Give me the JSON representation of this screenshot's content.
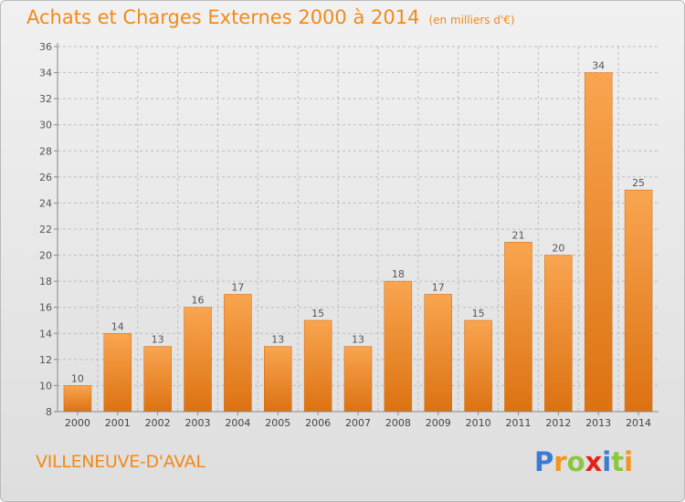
{
  "title": "Achats et Charges Externes 2000 à 2014",
  "unit": "(en milliers d'€)",
  "commune": "VILLENEUVE-D'AVAL",
  "logo": {
    "text": "Proxiti",
    "letters": [
      "P",
      "r",
      "o",
      "x",
      "i",
      "t",
      "i"
    ],
    "colors": [
      "#3a7bd5",
      "#f7941d",
      "#8cc63f",
      "#e2231a",
      "#3a7bd5",
      "#8cc63f",
      "#f7941d"
    ]
  },
  "colors": {
    "accent": "#f28a1a",
    "bar_light": "#f9a550",
    "bar_dark": "#dc7212",
    "axis": "#888888",
    "grid": "#bdbdbd"
  },
  "chart_data": {
    "type": "bar",
    "title": "Achats et Charges Externes 2000 à 2014",
    "subtitle": "(en milliers d'€)",
    "xlabel": "",
    "ylabel": "",
    "categories": [
      "2000",
      "2001",
      "2002",
      "2003",
      "2004",
      "2005",
      "2006",
      "2007",
      "2008",
      "2009",
      "2010",
      "2011",
      "2012",
      "2013",
      "2014"
    ],
    "values": [
      10,
      14,
      13,
      16,
      17,
      13,
      15,
      13,
      18,
      17,
      15,
      21,
      20,
      34,
      25
    ],
    "ylim": [
      8,
      36
    ],
    "yticks": [
      8,
      10,
      12,
      14,
      16,
      18,
      20,
      22,
      24,
      26,
      28,
      30,
      32,
      34,
      36
    ],
    "grid": true,
    "data_labels": true
  }
}
